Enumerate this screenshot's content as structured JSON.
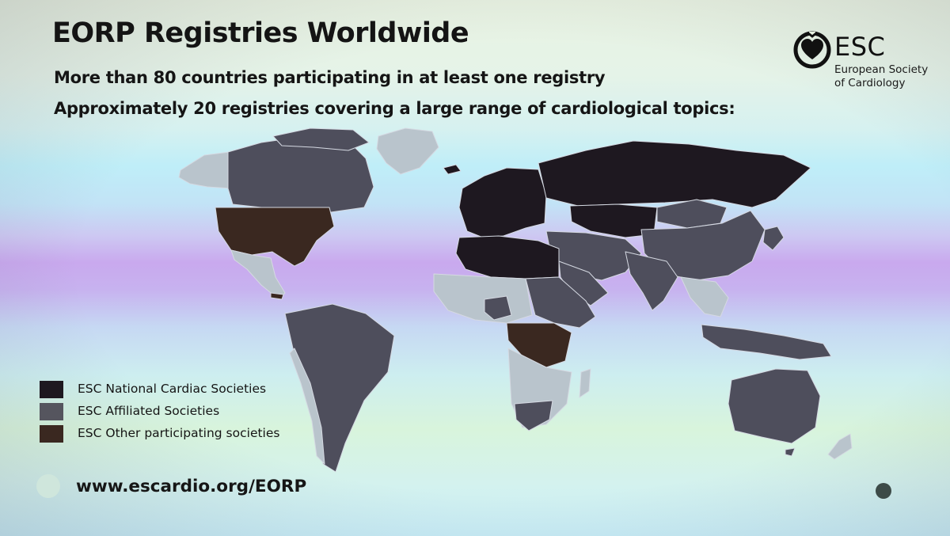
{
  "slide": {
    "title": "EORP Registries Worldwide",
    "subtitle_lines": [
      "More than 80 countries participating in at least one registry",
      "Approximately 20 registries covering a large range of cardiological topics:"
    ],
    "url": "www.escardio.org/EORP"
  },
  "logo": {
    "abbr": "ESC",
    "name_lines": [
      "European Society",
      "of Cardiology"
    ]
  },
  "legend": {
    "items": [
      {
        "label": "ESC National Cardiac Societies",
        "color": "#1e1820"
      },
      {
        "label": "ESC Affiliated Societies",
        "color": "#55555e"
      },
      {
        "label": "ESC Other participating societies",
        "color": "#3a2820"
      }
    ]
  },
  "map": {
    "fill_colors": {
      "national": "#1e1820",
      "affiliated": "#4e4e5c",
      "other": "#3a2820",
      "non_participating": "#b9c4cc",
      "borders": "#d5d9e2"
    }
  }
}
